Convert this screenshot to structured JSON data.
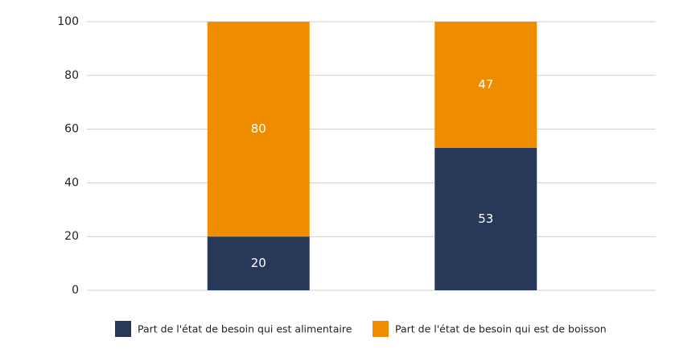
{
  "chart_data": {
    "type": "stacked-bar",
    "categories": [
      null,
      null
    ],
    "series": [
      {
        "name": "Part de l'état de besoin qui est alimentaire",
        "color": "#283858",
        "values": [
          20,
          53
        ]
      },
      {
        "name": "Part de l'état de besoin qui est de boisson",
        "color": "#f08c00",
        "values": [
          80,
          47
        ]
      }
    ],
    "ylim": [
      0,
      100
    ],
    "yticks": [
      0,
      20,
      40,
      60,
      80,
      100
    ],
    "grid": true,
    "legend": "bottom"
  }
}
